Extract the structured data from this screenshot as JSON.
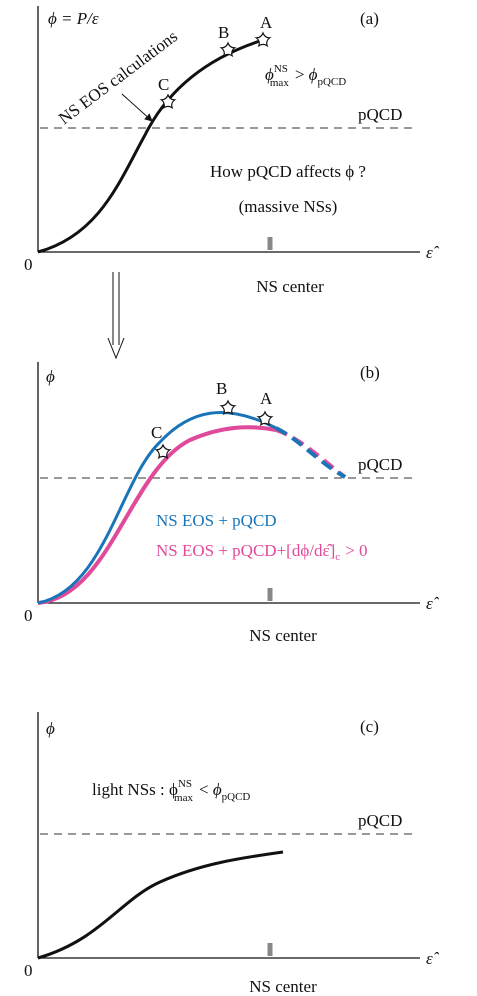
{
  "panels": [
    {
      "label": "(a)",
      "y_axis": "ϕ = P/ε",
      "x_axis": "ε̂",
      "origin": "0",
      "center": "NS center",
      "pqcd": "pQCD",
      "points": [
        "A",
        "B",
        "C"
      ],
      "curve_note": "NS EOS calculations",
      "condition": {
        "lhs": "ϕ",
        "lhs_sup": "NS",
        "lhs_sub": "max",
        "op": ">",
        "rhs": "ϕ",
        "rhs_sub": "pQCD"
      },
      "question": "How pQCD affects ϕ ?",
      "question_note": "(massive NSs)"
    },
    {
      "label": "(b)",
      "y_axis": "ϕ",
      "x_axis": "ε̂",
      "origin": "0",
      "center": "NS center",
      "pqcd": "pQCD",
      "points": [
        "A",
        "B",
        "C"
      ],
      "legend": {
        "blue": "NS EOS + pQCD",
        "pink": "NS EOS + pQCD+[dϕ/dε̂]",
        "pink_sub": "c",
        "pink_tail": "> 0"
      }
    },
    {
      "label": "(c)",
      "y_axis": "ϕ",
      "x_axis": "ε̂",
      "origin": "0",
      "center": "NS center",
      "pqcd": "pQCD",
      "condition": {
        "lhs": "light NSs : ϕ",
        "lhs_sup": "NS",
        "lhs_sub": "max",
        "op": "<",
        "rhs": "ϕ",
        "rhs_sub": "pQCD"
      }
    }
  ]
}
